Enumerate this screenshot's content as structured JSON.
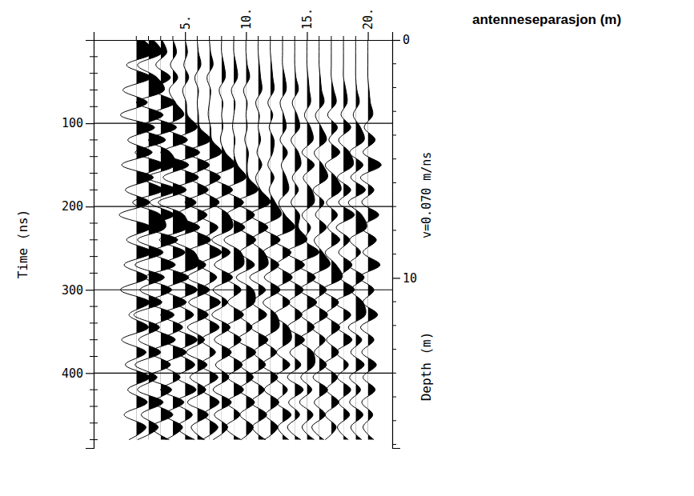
{
  "chart_data": {
    "type": "wiggle",
    "xlabel": "antenneseparasjon (m)",
    "ylabel": "Time (ns)",
    "y2label": "Depth (m)",
    "annotation": "v=0.070 m/ns",
    "xlim": [
      -2.5,
      22
    ],
    "xticks": [
      {
        "value": 5,
        "label": "5."
      },
      {
        "value": 10,
        "label": "10."
      },
      {
        "value": 15,
        "label": "15."
      },
      {
        "value": 20,
        "label": "20."
      }
    ],
    "xminorticks": [
      1,
      2,
      3,
      4,
      6,
      7,
      8,
      9,
      11,
      12,
      13,
      14,
      16,
      17,
      18,
      19
    ],
    "ylim": [
      0,
      490
    ],
    "yticks": [
      100,
      200,
      300,
      400
    ],
    "yminorticks": [
      20,
      40,
      60,
      80,
      120,
      140,
      160,
      180,
      220,
      240,
      260,
      280,
      320,
      340,
      360,
      380,
      420,
      440,
      460,
      480
    ],
    "y2lim": [
      0,
      17.15
    ],
    "y2ticks": [
      0,
      10
    ],
    "y2minorticks": [
      1,
      2,
      3,
      4,
      5,
      6,
      7,
      8,
      9,
      11,
      12,
      13,
      14,
      15,
      16,
      17
    ],
    "grid": true,
    "t": [
      0,
      15,
      30,
      45,
      60,
      75,
      90,
      105,
      120,
      135,
      150,
      165,
      180,
      195,
      210,
      225,
      240,
      255,
      270,
      285,
      300,
      315,
      330,
      345,
      360,
      375,
      390,
      405,
      420,
      435,
      450,
      465,
      480
    ],
    "traces": [
      {
        "offset": 1,
        "values": [
          0.6,
          1.4,
          -0.8,
          1.2,
          -1.1,
          0.9,
          -1.3,
          1.5,
          -0.7,
          1.3,
          -1.2,
          1.4,
          -0.9,
          1.1,
          -1.4,
          1.2,
          -0.8,
          1.3,
          -1.0,
          0.9,
          -1.3,
          1.1,
          -0.6,
          1.0,
          -1.2,
          0.8,
          -0.9,
          1.1,
          -0.7,
          0.9,
          -1.0,
          0.8,
          -0.6
        ]
      },
      {
        "offset": 2,
        "values": [
          0.4,
          1.1,
          -0.9,
          0.7,
          1.3,
          -1.0,
          1.2,
          -0.8,
          1.4,
          -1.1,
          1.3,
          -0.6,
          1.2,
          -1.3,
          1.0,
          1.4,
          -0.9,
          1.2,
          -1.1,
          1.3,
          -0.7,
          1.1,
          -1.2,
          0.9,
          -0.8,
          1.0,
          -1.1,
          0.7,
          -0.9,
          1.2,
          -0.6,
          0.8,
          -0.9
        ]
      },
      {
        "offset": 3,
        "values": [
          0.1,
          0.5,
          -0.4,
          0.8,
          -0.6,
          1.2,
          -0.9,
          1.3,
          -1.0,
          0.8,
          1.2,
          -1.1,
          1.3,
          -0.9,
          1.1,
          -1.2,
          1.4,
          -0.8,
          1.2,
          -1.3,
          0.9,
          -1.0,
          1.1,
          -0.7,
          1.2,
          -0.9,
          0.8,
          -1.1,
          0.9,
          -0.6,
          1.0,
          -0.8,
          0.7
        ]
      },
      {
        "offset": 4,
        "values": [
          0.0,
          0.3,
          -0.2,
          0.4,
          -0.3,
          0.2,
          0.9,
          -0.7,
          1.2,
          -1.0,
          1.3,
          -0.8,
          1.1,
          -1.2,
          0.9,
          1.2,
          -1.1,
          1.0,
          -0.9,
          1.3,
          -0.7,
          1.1,
          -1.0,
          0.8,
          -0.9,
          1.1,
          -0.8,
          0.6,
          -1.0,
          0.9,
          -0.7,
          0.8,
          -0.6
        ]
      },
      {
        "offset": 5,
        "values": [
          0.0,
          0.2,
          -0.1,
          0.3,
          -0.2,
          0.1,
          0.2,
          1.0,
          -0.8,
          1.2,
          -0.9,
          1.1,
          -1.0,
          0.9,
          -0.7,
          1.2,
          -1.0,
          0.8,
          1.1,
          -0.9,
          1.0,
          -0.8,
          0.7,
          -0.9,
          1.0,
          -0.6,
          0.8,
          -0.7,
          0.9,
          -0.8,
          0.6,
          -0.7,
          0.8
        ]
      },
      {
        "offset": 6,
        "values": [
          0.0,
          0.1,
          0.3,
          -0.2,
          0.1,
          0.0,
          0.1,
          0.2,
          1.1,
          -0.9,
          1.0,
          -0.7,
          0.9,
          -1.0,
          0.8,
          -0.6,
          1.1,
          -0.9,
          0.7,
          -0.8,
          1.0,
          -0.7,
          0.9,
          -0.8,
          0.6,
          -0.9,
          0.8,
          -0.6,
          0.7,
          -0.8,
          0.9,
          -0.5,
          0.6
        ]
      },
      {
        "offset": 7,
        "values": [
          0.0,
          0.1,
          0.3,
          -0.2,
          0.1,
          0.0,
          -0.1,
          0.1,
          0.2,
          1.0,
          -0.8,
          0.9,
          -0.6,
          0.8,
          -0.9,
          0.7,
          -0.5,
          1.0,
          -0.8,
          0.6,
          -0.7,
          0.9,
          -0.6,
          0.8,
          -0.7,
          0.5,
          -0.8,
          0.7,
          -0.6,
          0.8,
          -0.5,
          0.7,
          -0.6
        ]
      },
      {
        "offset": 8,
        "values": [
          0.0,
          0.0,
          0.2,
          0.3,
          -0.2,
          0.1,
          0.0,
          0.1,
          -0.1,
          0.3,
          1.1,
          -0.8,
          0.9,
          -0.7,
          0.6,
          0.9,
          -0.8,
          0.7,
          -0.6,
          0.9,
          -0.7,
          0.5,
          -0.8,
          0.7,
          -0.6,
          0.8,
          -0.5,
          0.6,
          -0.7,
          0.8,
          -0.6,
          0.5,
          -0.7
        ]
      },
      {
        "offset": 9,
        "values": [
          0.0,
          0.0,
          0.2,
          0.3,
          -0.2,
          0.1,
          0.0,
          -0.1,
          0.1,
          0.0,
          0.3,
          1.0,
          -0.7,
          0.8,
          -0.6,
          0.9,
          -0.8,
          0.6,
          0.8,
          -0.7,
          0.6,
          -0.5,
          0.8,
          -0.7,
          0.6,
          -0.6,
          0.7,
          -0.5,
          0.8,
          -0.6,
          0.5,
          -0.7,
          0.6
        ]
      },
      {
        "offset": 10,
        "values": [
          0.0,
          0.0,
          0.1,
          0.3,
          -0.2,
          0.1,
          0.0,
          0.1,
          -0.1,
          0.2,
          0.1,
          0.2,
          1.0,
          -0.8,
          0.7,
          -0.6,
          0.8,
          -0.5,
          0.7,
          -0.8,
          0.6,
          0.7,
          -0.6,
          0.5,
          -0.7,
          0.8,
          -0.5,
          0.6,
          -0.6,
          0.7,
          -0.5,
          0.6,
          -0.4
        ]
      },
      {
        "offset": 11,
        "values": [
          0.0,
          0.0,
          0.1,
          0.2,
          0.3,
          -0.2,
          0.1,
          0.0,
          0.2,
          -0.1,
          0.3,
          -0.2,
          0.2,
          1.0,
          -0.7,
          0.8,
          -0.6,
          0.5,
          0.8,
          -0.7,
          0.6,
          -0.5,
          0.7,
          -0.6,
          0.8,
          -0.4,
          0.6,
          -0.7,
          0.5,
          -0.6,
          0.7,
          -0.5,
          0.6
        ]
      },
      {
        "offset": 12,
        "values": [
          0.0,
          0.0,
          0.1,
          0.2,
          0.3,
          -0.2,
          0.2,
          -0.1,
          0.3,
          0.2,
          -0.2,
          0.3,
          -0.1,
          0.4,
          0.9,
          -0.7,
          0.8,
          -0.6,
          0.7,
          -0.5,
          0.8,
          -0.6,
          0.5,
          0.7,
          -0.6,
          0.5,
          -0.7,
          0.6,
          -0.5,
          0.7,
          -0.4,
          0.6,
          -0.5
        ]
      },
      {
        "offset": 13,
        "values": [
          0.0,
          0.0,
          0.0,
          0.2,
          0.3,
          -0.2,
          0.1,
          0.3,
          -0.2,
          0.4,
          -0.1,
          0.3,
          0.5,
          -0.3,
          0.2,
          1.0,
          -0.8,
          0.7,
          -0.5,
          0.8,
          -0.6,
          0.6,
          -0.7,
          0.5,
          0.7,
          -0.5,
          0.6,
          -0.6,
          0.4,
          -0.5,
          0.7,
          -0.4,
          0.5
        ]
      },
      {
        "offset": 14,
        "values": [
          0.0,
          0.0,
          0.0,
          0.1,
          0.3,
          -0.2,
          0.2,
          0.4,
          -0.3,
          0.3,
          0.5,
          -0.2,
          0.3,
          -0.3,
          0.4,
          0.3,
          1.0,
          -0.7,
          0.8,
          -0.6,
          0.7,
          -0.5,
          0.6,
          -0.6,
          0.8,
          -0.4,
          0.5,
          -0.6,
          0.7,
          -0.5,
          0.4,
          -0.6,
          0.5
        ]
      },
      {
        "offset": 15,
        "values": [
          0.0,
          0.0,
          0.0,
          0.1,
          0.2,
          0.3,
          -0.2,
          0.3,
          0.5,
          -0.4,
          0.6,
          -0.3,
          0.4,
          0.6,
          -0.4,
          0.3,
          -0.2,
          1.0,
          -0.8,
          0.7,
          -0.6,
          0.8,
          -0.5,
          0.6,
          -0.7,
          0.5,
          0.6,
          -0.5,
          0.4,
          -0.6,
          0.5,
          -0.4,
          0.6
        ]
      },
      {
        "offset": 16,
        "values": [
          0.0,
          0.0,
          0.0,
          0.1,
          0.2,
          0.4,
          -0.3,
          0.2,
          0.6,
          -0.4,
          0.3,
          0.7,
          -0.5,
          0.4,
          -0.3,
          0.6,
          -0.4,
          0.3,
          0.9,
          -0.7,
          0.6,
          -0.5,
          0.7,
          -0.6,
          0.5,
          -0.4,
          0.6,
          -0.5,
          0.7,
          -0.4,
          0.5,
          -0.6,
          0.4
        ]
      },
      {
        "offset": 17,
        "values": [
          0.0,
          0.0,
          0.0,
          0.0,
          0.2,
          0.4,
          -0.3,
          0.5,
          -0.2,
          0.7,
          -0.5,
          0.4,
          0.8,
          -0.4,
          0.5,
          -0.3,
          0.7,
          -0.5,
          0.4,
          0.9,
          -0.7,
          0.6,
          -0.5,
          0.7,
          -0.4,
          0.6,
          -0.6,
          0.5,
          -0.4,
          0.6,
          -0.5,
          0.4,
          -0.5
        ]
      },
      {
        "offset": 18,
        "values": [
          0.0,
          0.0,
          0.0,
          0.0,
          0.2,
          0.3,
          -0.2,
          0.6,
          -0.4,
          0.5,
          0.8,
          -0.5,
          0.6,
          -0.4,
          0.9,
          -0.6,
          0.5,
          -0.4,
          0.7,
          -0.3,
          0.9,
          -0.7,
          0.6,
          -0.5,
          0.7,
          -0.6,
          0.4,
          -0.5,
          0.6,
          -0.4,
          0.5,
          -0.5,
          0.4
        ]
      },
      {
        "offset": 19,
        "values": [
          0.0,
          0.0,
          0.0,
          0.0,
          0.1,
          0.3,
          -0.2,
          0.4,
          0.7,
          -0.5,
          0.6,
          -0.4,
          0.8,
          -0.6,
          0.5,
          0.9,
          -0.5,
          0.4,
          -0.6,
          0.7,
          -0.4,
          0.6,
          0.8,
          -0.6,
          0.5,
          -0.4,
          0.7,
          -0.5,
          0.4,
          -0.5,
          0.6,
          -0.4,
          0.5
        ]
      },
      {
        "offset": 20,
        "values": [
          0.0,
          0.0,
          0.0,
          0.0,
          0.1,
          0.2,
          0.4,
          -0.3,
          0.6,
          -0.4,
          1.1,
          -0.6,
          0.5,
          -0.5,
          0.9,
          -0.6,
          0.7,
          -0.4,
          1.0,
          -0.7,
          0.5,
          -0.4,
          0.8,
          -0.6,
          0.5,
          -0.5,
          0.7,
          -0.4,
          0.6,
          -0.5,
          0.4,
          -0.4,
          0.5
        ]
      }
    ]
  }
}
